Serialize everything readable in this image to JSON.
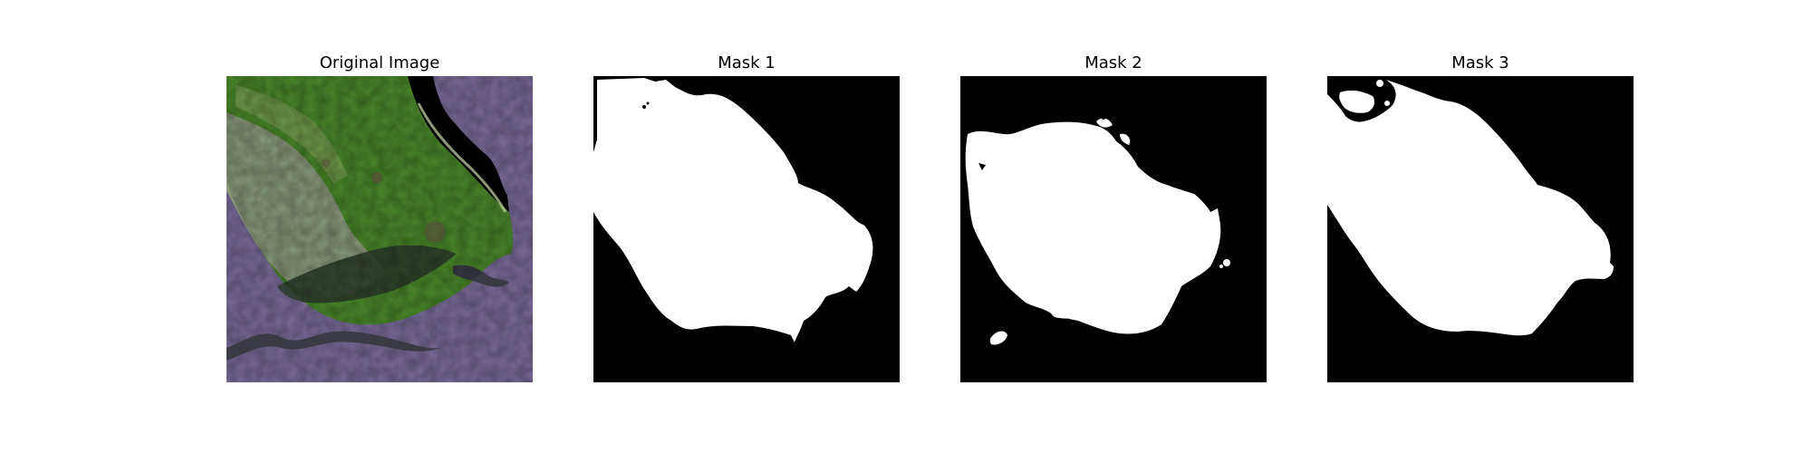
{
  "panels": [
    {
      "title": "Original Image"
    },
    {
      "title": "Mask 1"
    },
    {
      "title": "Mask 2"
    },
    {
      "title": "Mask 3"
    }
  ],
  "colors": {
    "background": "#ffffff",
    "mask_foreground": "#ffffff",
    "mask_background": "#000000",
    "water": "#7b6d9a",
    "vegetation": "#4a8a2a",
    "terrain": "#8a9a7a",
    "shadow": "#2a3a2a"
  }
}
